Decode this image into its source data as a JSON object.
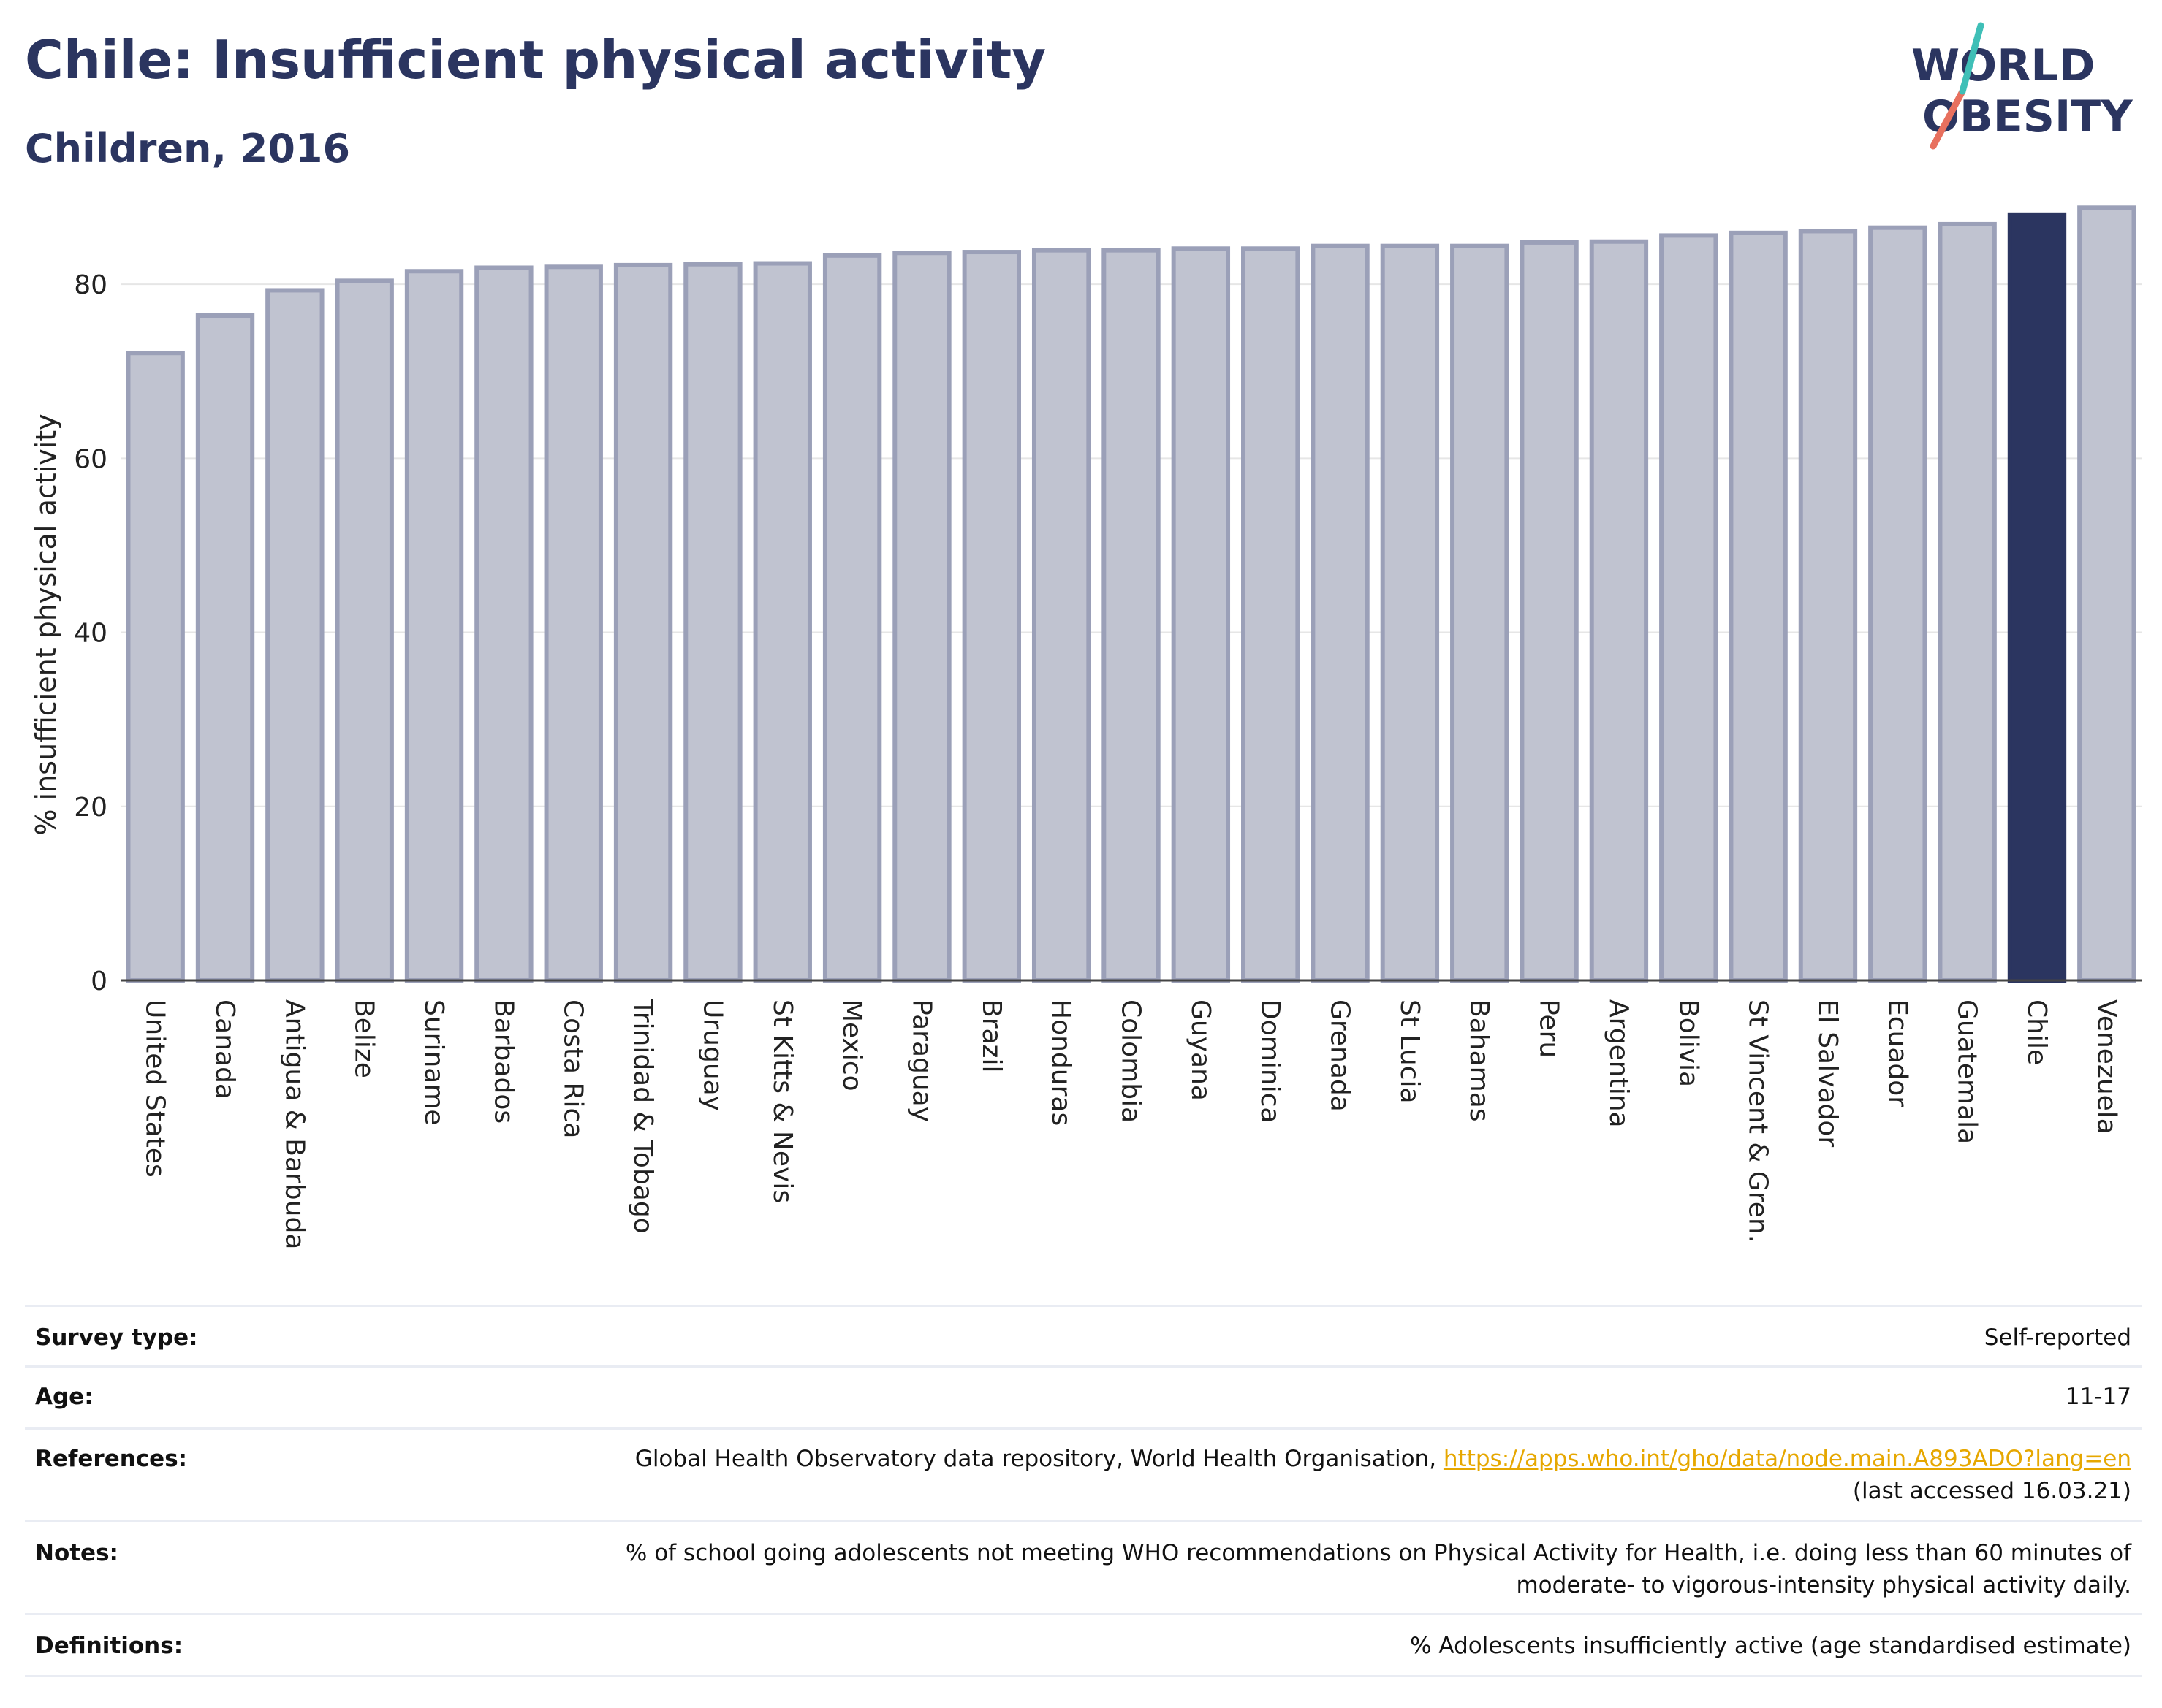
{
  "header": {
    "title": "Chile: Insufficient physical activity",
    "subtitle": "Children, 2016",
    "logo_line1": "WORLD",
    "logo_line2": "OBESITY"
  },
  "chart_data": {
    "type": "bar",
    "title": "Chile: Insufficient physical activity",
    "subtitle": "Children, 2016",
    "xlabel": "",
    "ylabel": "% insufficient physical activity",
    "ylim": [
      0,
      90
    ],
    "yticks": [
      0,
      20,
      40,
      60,
      80
    ],
    "grid": true,
    "highlight": "Chile",
    "colors": {
      "bar": "#c0c3d0",
      "bar_edge": "#9ba0b8",
      "highlight": "#2b3560",
      "grid": "#e6e6e6",
      "axis": "#444444"
    },
    "categories": [
      "United States",
      "Canada",
      "Antigua & Barbuda",
      "Belize",
      "Suriname",
      "Barbados",
      "Costa Rica",
      "Trinidad & Tobago",
      "Uruguay",
      "St Kitts & Nevis",
      "Mexico",
      "Paraguay",
      "Brazil",
      "Honduras",
      "Colombia",
      "Guyana",
      "Dominica",
      "Grenada",
      "St Lucia",
      "Bahamas",
      "Peru",
      "Argentina",
      "Bolivia",
      "St Vincent & Gren.",
      "El Salvador",
      "Ecuador",
      "Guatemala",
      "Chile",
      "Venezuela"
    ],
    "values": [
      72.1,
      76.4,
      79.3,
      80.4,
      81.5,
      81.9,
      82.0,
      82.2,
      82.3,
      82.4,
      83.3,
      83.6,
      83.7,
      83.9,
      83.9,
      84.1,
      84.1,
      84.4,
      84.4,
      84.4,
      84.8,
      84.9,
      85.6,
      85.9,
      86.1,
      86.5,
      86.9,
      88.0,
      88.8
    ]
  },
  "info": {
    "survey_type_label": "Survey type:",
    "survey_type_value": "Self-reported",
    "age_label": "Age:",
    "age_value": "11-17",
    "references_label": "References:",
    "references_text": "Global Health Observatory data repository, World Health Organisation, ",
    "references_link": "https://apps.who.int/gho/data/node.main.A893ADO?lang=en",
    "references_accessed": "(last accessed 16.03.21)",
    "notes_label": "Notes:",
    "notes_line1": "% of school going adolescents not meeting WHO recommendations on Physical Activity for Health, i.e. doing less than 60 minutes of",
    "notes_line2": "moderate- to vigorous-intensity physical activity daily.",
    "definitions_label": "Definitions:",
    "definitions_value": "% Adolescents insufficiently active (age standardised estimate)"
  }
}
